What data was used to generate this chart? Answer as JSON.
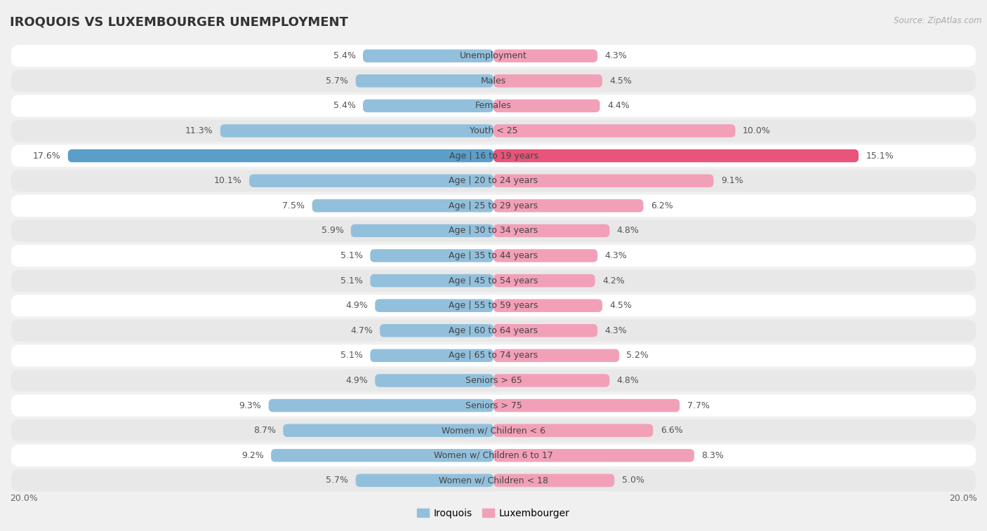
{
  "title": "IROQUOIS VS LUXEMBOURGER UNEMPLOYMENT",
  "source": "Source: ZipAtlas.com",
  "categories": [
    "Unemployment",
    "Males",
    "Females",
    "Youth < 25",
    "Age | 16 to 19 years",
    "Age | 20 to 24 years",
    "Age | 25 to 29 years",
    "Age | 30 to 34 years",
    "Age | 35 to 44 years",
    "Age | 45 to 54 years",
    "Age | 55 to 59 years",
    "Age | 60 to 64 years",
    "Age | 65 to 74 years",
    "Seniors > 65",
    "Seniors > 75",
    "Women w/ Children < 6",
    "Women w/ Children 6 to 17",
    "Women w/ Children < 18"
  ],
  "iroquois": [
    5.4,
    5.7,
    5.4,
    11.3,
    17.6,
    10.1,
    7.5,
    5.9,
    5.1,
    5.1,
    4.9,
    4.7,
    5.1,
    4.9,
    9.3,
    8.7,
    9.2,
    5.7
  ],
  "luxembourger": [
    4.3,
    4.5,
    4.4,
    10.0,
    15.1,
    9.1,
    6.2,
    4.8,
    4.3,
    4.2,
    4.5,
    4.3,
    5.2,
    4.8,
    7.7,
    6.6,
    8.3,
    5.0
  ],
  "iroquois_color": "#92c0dc",
  "luxembourger_color": "#f2a0b8",
  "iroquois_highlight_color": "#5b9ec9",
  "luxembourger_highlight_color": "#e8547a",
  "bg_color": "#f0f0f0",
  "row_color_white": "#ffffff",
  "row_color_gray": "#e8e8e8",
  "max_value": 20.0,
  "bar_height": 0.52,
  "label_fontsize": 9.0,
  "category_fontsize": 9.0,
  "title_fontsize": 13,
  "legend_fontsize": 10,
  "highlight_row": 4
}
